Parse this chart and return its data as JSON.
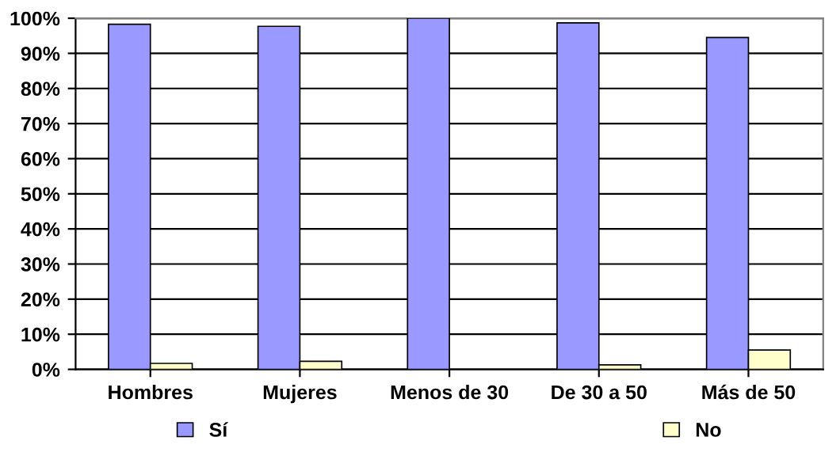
{
  "chart_data": {
    "type": "bar",
    "categories": [
      "Hombres",
      "Mujeres",
      "Menos de 30",
      "De 30 a 50",
      "Más de 50"
    ],
    "series": [
      {
        "name": "Sí",
        "color": "#9999ff",
        "values": [
          98.3,
          97.7,
          100,
          98.7,
          94.5
        ]
      },
      {
        "name": "No",
        "color": "#ffffcc",
        "values": [
          1.7,
          2.3,
          0,
          1.3,
          5.5
        ]
      }
    ],
    "ylim": [
      0,
      100
    ],
    "yticks": [
      {
        "value": 0,
        "label": "0%"
      },
      {
        "value": 10,
        "label": "10%"
      },
      {
        "value": 20,
        "label": "20%"
      },
      {
        "value": 30,
        "label": "30%"
      },
      {
        "value": 40,
        "label": "40%"
      },
      {
        "value": 50,
        "label": "50%"
      },
      {
        "value": 60,
        "label": "60%"
      },
      {
        "value": 70,
        "label": "70%"
      },
      {
        "value": 80,
        "label": "80%"
      },
      {
        "value": 90,
        "label": "90%"
      },
      {
        "value": 100,
        "label": "100%"
      }
    ],
    "grid": "y",
    "legend": "bottom"
  }
}
